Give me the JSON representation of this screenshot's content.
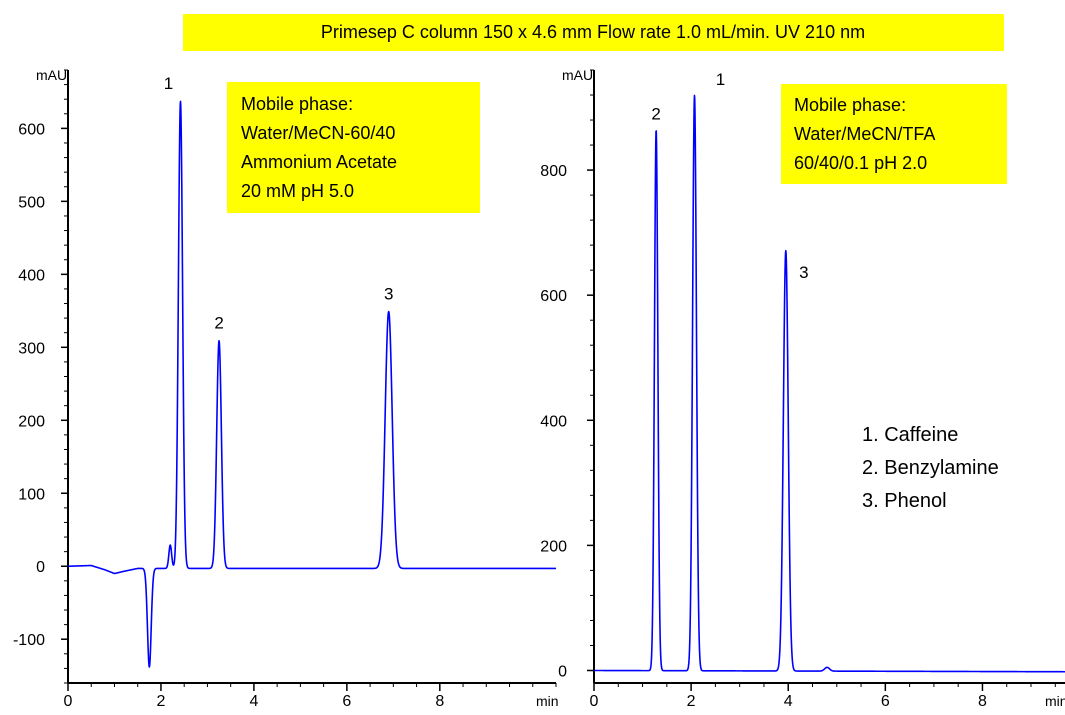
{
  "banner": {
    "text": "Primesep C  column 150 x 4.6 mm  Flow rate 1.0 mL/min.    UV  210 nm"
  },
  "legend": {
    "items": [
      "1. Caffeine",
      "2. Benzylamine",
      "3. Phenol"
    ]
  },
  "colors": {
    "trace": "#0000ff",
    "box": "#ffff00",
    "axis": "#000000"
  },
  "chart_data": [
    {
      "type": "line",
      "title": "",
      "x_unit_label": "min",
      "y_unit_label": "mAU",
      "xlim": [
        0,
        10.5
      ],
      "ylim": [
        -160,
        680
      ],
      "x_ticks": [
        0,
        2,
        4,
        6,
        8
      ],
      "y_ticks": [
        -100,
        0,
        100,
        200,
        300,
        400,
        500,
        600
      ],
      "info_box": [
        "Mobile phase:",
        "Water/MeCN-60/40",
        "Ammonium Acetate",
        "20 mM  pH 5.0"
      ],
      "baseline": [
        [
          0,
          0
        ],
        [
          0.5,
          1
        ],
        [
          0.8,
          -5
        ],
        [
          1.0,
          -10
        ],
        [
          1.2,
          -7
        ],
        [
          1.5,
          -3
        ]
      ],
      "peaks": [
        {
          "label": "",
          "x": 1.75,
          "y": -135,
          "width": 0.04
        },
        {
          "label": "",
          "x": 2.2,
          "y": 32,
          "width": 0.03
        },
        {
          "label": "1",
          "x": 2.42,
          "y": 640,
          "width": 0.045
        },
        {
          "label": "2",
          "x": 3.25,
          "y": 312,
          "width": 0.05
        },
        {
          "label": "3",
          "x": 6.9,
          "y": 352,
          "width": 0.075
        }
      ]
    },
    {
      "type": "line",
      "title": "",
      "x_unit_label": "min",
      "y_unit_label": "mAU",
      "xlim": [
        0,
        9.7
      ],
      "ylim": [
        -20,
        960
      ],
      "x_ticks": [
        0,
        2,
        4,
        6,
        8
      ],
      "y_ticks": [
        0,
        200,
        400,
        600,
        800
      ],
      "info_box": [
        "Mobile phase:",
        "Water/MeCN/TFA",
        "60/40/0.1 pH 2.0"
      ],
      "baseline": [
        [
          0,
          0
        ],
        [
          9.7,
          -2
        ]
      ],
      "peaks": [
        {
          "label": "2",
          "x": 1.28,
          "y": 865,
          "width": 0.035
        },
        {
          "label": "1",
          "x": 2.07,
          "y": 920,
          "width": 0.04
        },
        {
          "label": "3",
          "x": 3.95,
          "y": 672,
          "width": 0.05
        },
        {
          "label": "",
          "x": 4.8,
          "y": 6,
          "width": 0.05
        }
      ]
    }
  ]
}
